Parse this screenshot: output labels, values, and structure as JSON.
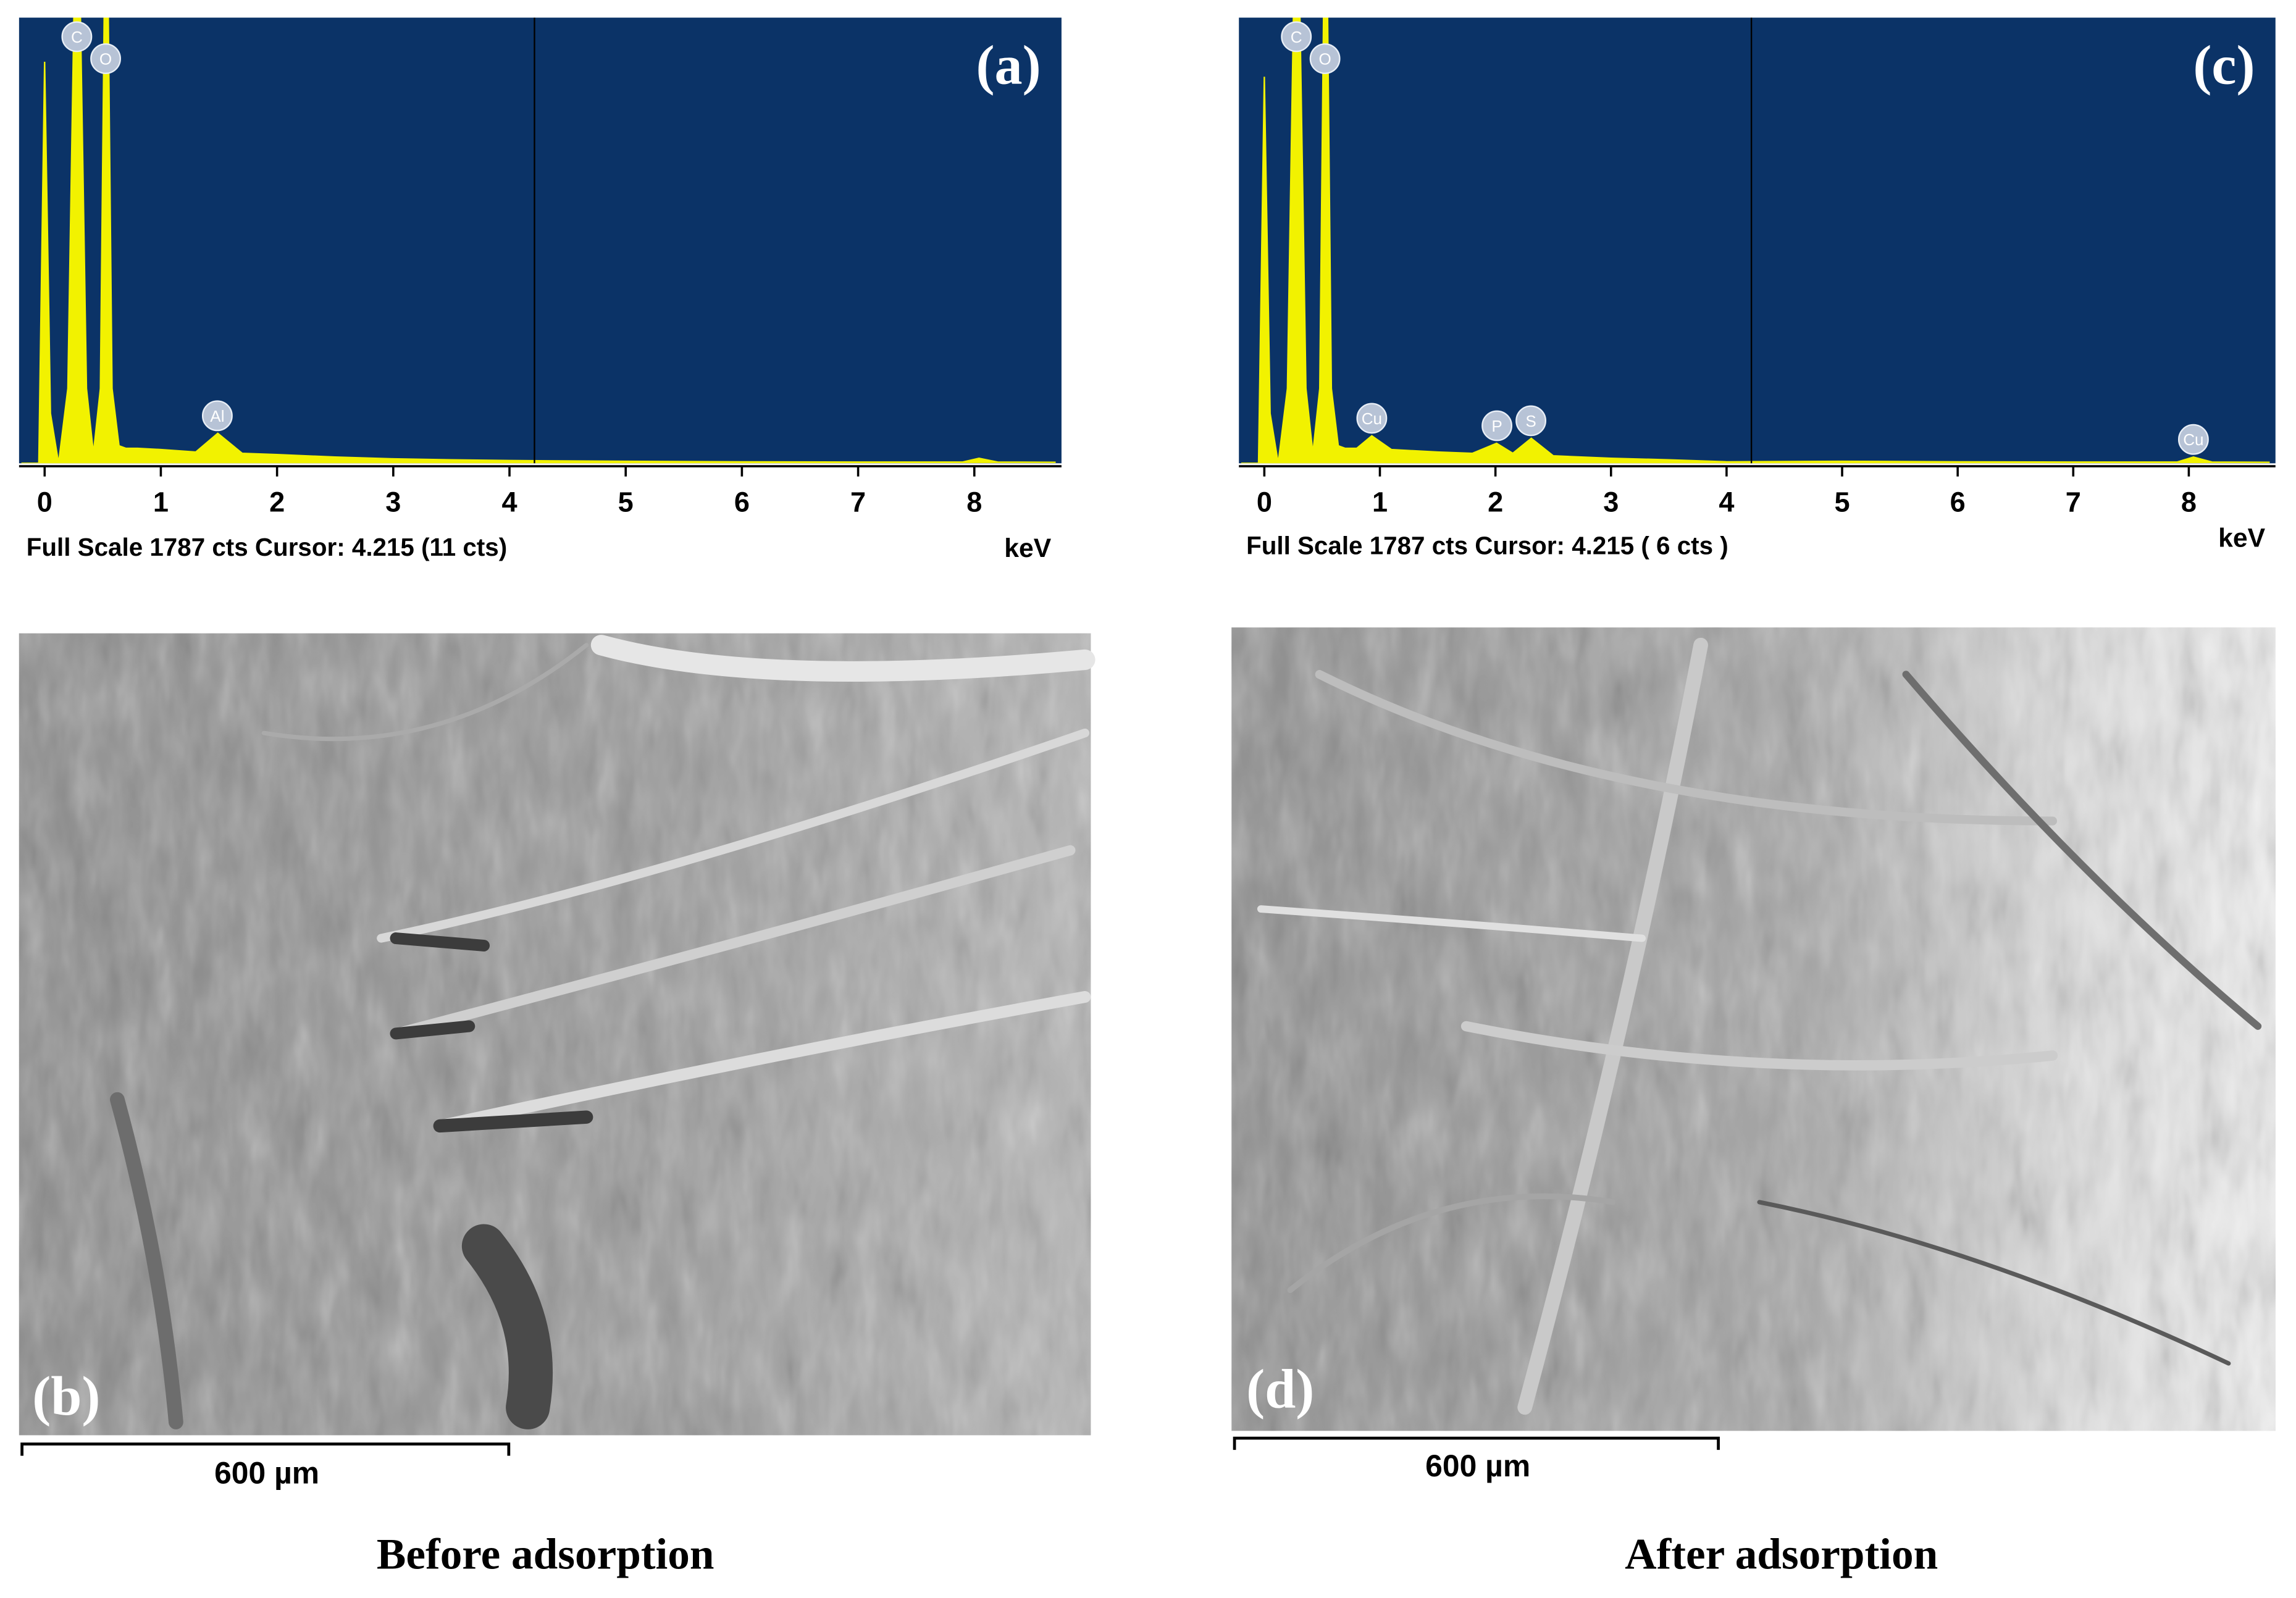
{
  "chart_data": [
    {
      "type": "area",
      "title": "(a)",
      "color": "#f2f200",
      "background": "#0b3367",
      "x": [
        -0.2,
        -0.05,
        0,
        0.05,
        0.12,
        0.2,
        0.28,
        0.36,
        0.42,
        0.48,
        0.53,
        0.58,
        0.64,
        0.7,
        0.8,
        1,
        1.3,
        1.49,
        1.7,
        2,
        2.5,
        3,
        3.5,
        4,
        5,
        6,
        7,
        7.9,
        8.04,
        8.2,
        8.7
      ],
      "values": [
        0,
        0,
        1610,
        200,
        0,
        300,
        2600,
        300,
        40,
        300,
        2600,
        300,
        70,
        60,
        60,
        55,
        45,
        120,
        40,
        35,
        25,
        18,
        14,
        11,
        8,
        6,
        5,
        5,
        20,
        5,
        4
      ],
      "xlim": [
        -0.22,
        8.75
      ],
      "xticks": [
        0,
        1,
        2,
        3,
        4,
        5,
        6,
        7,
        8
      ],
      "ylim": [
        0,
        1787
      ],
      "xlabel": "keV",
      "cursor": 4.215,
      "status": "Full Scale 1787 cts Cursor: 4.215 (11 cts)",
      "peaks": [
        {
          "label": "C",
          "x": 0.277
        },
        {
          "label": "O",
          "x": 0.525
        },
        {
          "label": "Al",
          "x": 1.486
        }
      ]
    },
    {
      "type": "area",
      "title": "(c)",
      "color": "#f2f200",
      "background": "#0b3367",
      "x": [
        -0.2,
        -0.05,
        0,
        0.05,
        0.12,
        0.2,
        0.28,
        0.36,
        0.42,
        0.48,
        0.53,
        0.58,
        0.64,
        0.7,
        0.8,
        0.93,
        1.1,
        1.5,
        1.8,
        2.01,
        2.15,
        2.31,
        2.5,
        3,
        3.5,
        4,
        5,
        6,
        7,
        7.9,
        8.04,
        8.2,
        8.7
      ],
      "values": [
        0,
        0,
        1550,
        200,
        0,
        300,
        2600,
        300,
        40,
        300,
        2600,
        300,
        70,
        60,
        60,
        110,
        55,
        45,
        40,
        80,
        40,
        100,
        30,
        20,
        14,
        6,
        8,
        6,
        5,
        5,
        25,
        5,
        4
      ],
      "xlim": [
        -0.22,
        8.75
      ],
      "xticks": [
        0,
        1,
        2,
        3,
        4,
        5,
        6,
        7,
        8
      ],
      "ylim": [
        0,
        1787
      ],
      "xlabel": "keV",
      "cursor": 4.215,
      "status": "Full Scale 1787 cts Cursor: 4.215 ( 6 cts )",
      "peaks": [
        {
          "label": "C",
          "x": 0.277
        },
        {
          "label": "O",
          "x": 0.525
        },
        {
          "label": "Cu",
          "x": 0.93
        },
        {
          "label": "P",
          "x": 2.013
        },
        {
          "label": "S",
          "x": 2.307
        },
        {
          "label": "Cu",
          "x": 8.04
        }
      ]
    }
  ],
  "images": [
    {
      "label": "(b)",
      "scale_bar": "600 µm",
      "caption": "Before adsorption"
    },
    {
      "label": "(d)",
      "scale_bar": "600 µm",
      "caption": "After adsorption"
    }
  ]
}
